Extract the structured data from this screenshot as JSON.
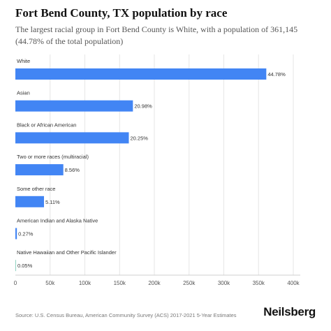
{
  "header": {
    "title": "Fort Bend County, TX population by race",
    "subtitle": "The largest racial group in Fort Bend County is White, with a population of 361,145 (44.78% of the total population)"
  },
  "footer": {
    "source": "Source: U.S. Census Bureau, American Community Survey (ACS) 2017-2021 5-Year Estimates",
    "brand": "Neilsberg"
  },
  "colors": {
    "bar": "#4285f4",
    "bar_small": "#8fd3c1"
  },
  "chart_data": {
    "type": "bar",
    "orientation": "horizontal",
    "categories": [
      "White",
      "Asian",
      "Black or African American",
      "Two or more races (multiracial)",
      "Some other race",
      "American Indian and Alaska Native",
      "Native Hawaiian and Other Pacific Islander"
    ],
    "values": [
      361145,
      169200,
      163300,
      69030,
      41210,
      2180,
      400
    ],
    "data_labels": [
      "44.78%",
      "20.98%",
      "20.25%",
      "8.56%",
      "5.11%",
      "0.27%",
      "0.05%"
    ],
    "xlim": [
      0,
      400000
    ],
    "xticks": [
      0,
      50000,
      100000,
      150000,
      200000,
      250000,
      300000,
      350000,
      400000
    ],
    "xtick_labels": [
      "0",
      "50k",
      "100k",
      "150k",
      "200k",
      "250k",
      "300k",
      "350k",
      "400k"
    ],
    "xlabel": "",
    "ylabel": "",
    "grid": true,
    "legend": "none"
  }
}
